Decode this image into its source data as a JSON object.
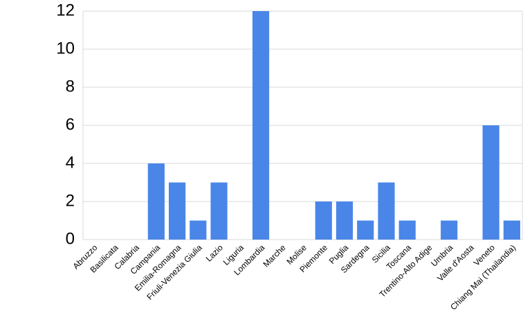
{
  "chart_data": {
    "type": "bar",
    "categories": [
      "Abruzzo",
      "Basilicata",
      "Calabria",
      "Campania",
      "Emilia-Romagna",
      "Friuli-Venezia Giulia",
      "Lazio",
      "Liguria",
      "Lombardia",
      "Marche",
      "Molise",
      "Piemonte",
      "Puglia",
      "Sardegna",
      "Sicilia",
      "Toscana",
      "Trentino-Alto Adige",
      "Umbria",
      "Valle d'Aosta",
      "Veneto",
      "Chiang Mai (Thailandia)"
    ],
    "values": [
      0,
      0,
      0,
      4,
      3,
      1,
      3,
      0,
      12,
      0,
      0,
      2,
      2,
      1,
      3,
      1,
      0,
      1,
      0,
      6,
      1
    ],
    "color": "#4a86e8",
    "ylim": [
      0,
      12
    ],
    "yticks": [
      0,
      2,
      4,
      6,
      8,
      10,
      12
    ],
    "grid": true
  }
}
